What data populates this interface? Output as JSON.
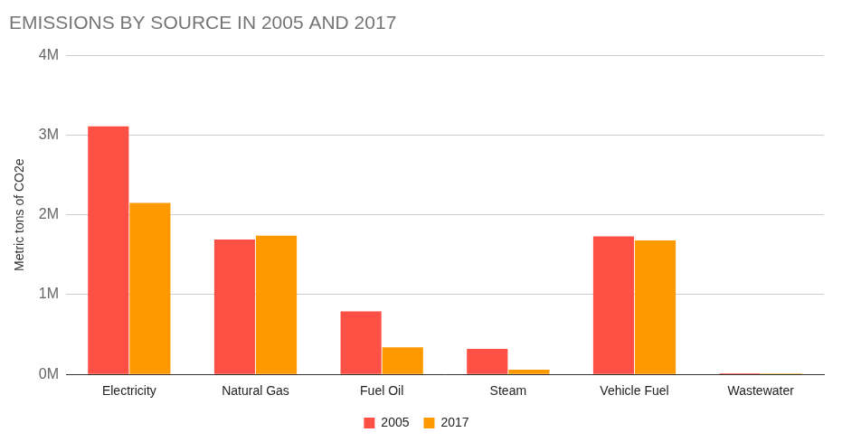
{
  "chart_data": {
    "type": "bar",
    "title": "EMISSIONS BY SOURCE IN 2005 AND 2017",
    "y_label": "Metric tons of CO2e",
    "categories": [
      "Electricity",
      "Natural Gas",
      "Fuel Oil",
      "Steam",
      "Vehicle Fuel",
      "Wastewater"
    ],
    "series": [
      {
        "name": "2005",
        "color": "#ff5046",
        "values": [
          3110000,
          1690000,
          790000,
          320000,
          1730000,
          15000
        ]
      },
      {
        "name": "2017",
        "color": "#ff9900",
        "values": [
          2150000,
          1740000,
          340000,
          60000,
          1680000,
          12000
        ]
      }
    ],
    "ylim": [
      0,
      4000000
    ],
    "yticks": [
      {
        "value": 0,
        "label": "0M"
      },
      {
        "value": 1000000,
        "label": "1M"
      },
      {
        "value": 2000000,
        "label": "2M"
      },
      {
        "value": 3000000,
        "label": "3M"
      },
      {
        "value": 4000000,
        "label": "4M"
      }
    ],
    "grid": true,
    "legend": "bottom"
  }
}
